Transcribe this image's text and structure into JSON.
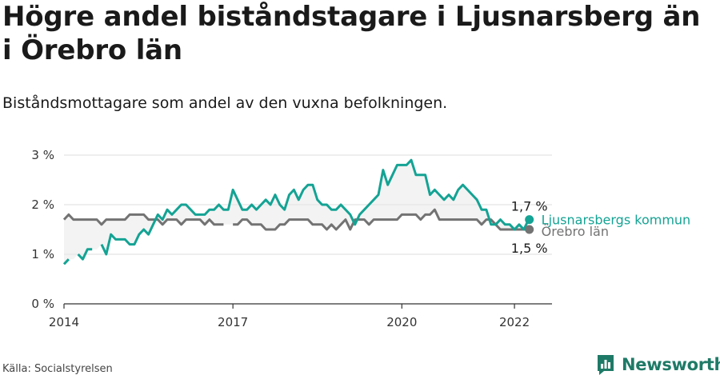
{
  "header": {
    "title": "Högre andel biståndstagare i Ljusnarsberg än i Örebro län",
    "subtitle": "Biståndsmottagare som andel av den vuxna befolkningen."
  },
  "footer": {
    "source": "Källa: Socialstyrelsen",
    "brand": "Newsworthy"
  },
  "colors": {
    "kommun": "#14a394",
    "lan": "#737373",
    "grid": "#dcdcdc",
    "axis": "#333333",
    "brand": "#1e7a66"
  },
  "chart_data": {
    "type": "line",
    "title": "",
    "xlabel": "",
    "ylabel": "",
    "ylim": [
      0,
      3
    ],
    "y_ticks": [
      {
        "value": 0,
        "label": "0 %"
      },
      {
        "value": 1,
        "label": "1 %"
      },
      {
        "value": 2,
        "label": "2 %"
      },
      {
        "value": 3,
        "label": "3 %"
      }
    ],
    "xlim": [
      "2014-01",
      "2022-09"
    ],
    "x_ticks": [
      {
        "value": "2014-01",
        "label": "2014"
      },
      {
        "value": "2017-01",
        "label": "2017"
      },
      {
        "value": "2020-01",
        "label": "2020"
      },
      {
        "value": "2022-01",
        "label": "2022"
      }
    ],
    "grid": true,
    "area_between_series": true,
    "series": [
      {
        "name": "Ljusnarsbergs kommun",
        "color": "#14a394",
        "end_label": "1,7 %",
        "x": [
          "2014-01",
          "2014-02",
          "2014-03",
          "2014-04",
          "2014-05",
          "2014-06",
          "2014-07",
          "2014-08",
          "2014-09",
          "2014-10",
          "2014-11",
          "2014-12",
          "2015-01",
          "2015-02",
          "2015-03",
          "2015-04",
          "2015-05",
          "2015-06",
          "2015-07",
          "2015-08",
          "2015-09",
          "2015-10",
          "2015-11",
          "2015-12",
          "2016-01",
          "2016-02",
          "2016-03",
          "2016-04",
          "2016-05",
          "2016-06",
          "2016-07",
          "2016-08",
          "2016-09",
          "2016-10",
          "2016-11",
          "2016-12",
          "2017-01",
          "2017-02",
          "2017-03",
          "2017-04",
          "2017-05",
          "2017-06",
          "2017-07",
          "2017-08",
          "2017-09",
          "2017-10",
          "2017-11",
          "2017-12",
          "2018-01",
          "2018-02",
          "2018-03",
          "2018-04",
          "2018-05",
          "2018-06",
          "2018-07",
          "2018-08",
          "2018-09",
          "2018-10",
          "2018-11",
          "2018-12",
          "2019-01",
          "2019-02",
          "2019-03",
          "2019-04",
          "2019-05",
          "2019-06",
          "2019-07",
          "2019-08",
          "2019-09",
          "2019-10",
          "2019-11",
          "2019-12",
          "2020-01",
          "2020-02",
          "2020-03",
          "2020-04",
          "2020-05",
          "2020-06",
          "2020-07",
          "2020-08",
          "2020-09",
          "2020-10",
          "2020-11",
          "2020-12",
          "2021-01",
          "2021-02",
          "2021-03",
          "2021-04",
          "2021-05",
          "2021-06",
          "2021-07",
          "2021-08",
          "2021-09",
          "2021-10",
          "2021-11",
          "2021-12",
          "2022-01",
          "2022-02",
          "2022-03",
          "2022-04"
        ],
        "values": [
          0.8,
          0.9,
          null,
          1.0,
          0.9,
          1.1,
          1.1,
          null,
          1.2,
          1.0,
          1.4,
          1.3,
          1.3,
          1.3,
          1.2,
          1.2,
          1.4,
          1.5,
          1.4,
          1.6,
          1.8,
          1.7,
          1.9,
          1.8,
          1.9,
          2.0,
          2.0,
          1.9,
          1.8,
          1.8,
          1.8,
          1.9,
          1.9,
          2.0,
          1.9,
          1.9,
          2.3,
          2.1,
          1.9,
          1.9,
          2.0,
          1.9,
          2.0,
          2.1,
          2.0,
          2.2,
          2.0,
          1.9,
          2.2,
          2.3,
          2.1,
          2.3,
          2.4,
          2.4,
          2.1,
          2.0,
          2.0,
          1.9,
          1.9,
          2.0,
          1.9,
          1.8,
          1.6,
          1.8,
          1.9,
          2.0,
          2.1,
          2.2,
          2.7,
          2.4,
          2.6,
          2.8,
          2.8,
          2.8,
          2.9,
          2.6,
          2.6,
          2.6,
          2.2,
          2.3,
          2.2,
          2.1,
          2.2,
          2.1,
          2.3,
          2.4,
          2.3,
          2.2,
          2.1,
          1.9,
          1.9,
          1.6,
          1.6,
          1.7,
          1.6,
          1.6,
          1.5,
          1.6,
          1.5,
          1.7
        ]
      },
      {
        "name": "Örebro län",
        "color": "#737373",
        "end_label": "1,5 %",
        "x": [
          "2014-01",
          "2014-02",
          "2014-03",
          "2014-04",
          "2014-05",
          "2014-06",
          "2014-07",
          "2014-08",
          "2014-09",
          "2014-10",
          "2014-11",
          "2014-12",
          "2015-01",
          "2015-02",
          "2015-03",
          "2015-04",
          "2015-05",
          "2015-06",
          "2015-07",
          "2015-08",
          "2015-09",
          "2015-10",
          "2015-11",
          "2015-12",
          "2016-01",
          "2016-02",
          "2016-03",
          "2016-04",
          "2016-05",
          "2016-06",
          "2016-07",
          "2016-08",
          "2016-09",
          "2016-10",
          "2016-11",
          "2016-12",
          "2017-01",
          "2017-02",
          "2017-03",
          "2017-04",
          "2017-05",
          "2017-06",
          "2017-07",
          "2017-08",
          "2017-09",
          "2017-10",
          "2017-11",
          "2017-12",
          "2018-01",
          "2018-02",
          "2018-03",
          "2018-04",
          "2018-05",
          "2018-06",
          "2018-07",
          "2018-08",
          "2018-09",
          "2018-10",
          "2018-11",
          "2018-12",
          "2019-01",
          "2019-02",
          "2019-03",
          "2019-04",
          "2019-05",
          "2019-06",
          "2019-07",
          "2019-08",
          "2019-09",
          "2019-10",
          "2019-11",
          "2019-12",
          "2020-01",
          "2020-02",
          "2020-03",
          "2020-04",
          "2020-05",
          "2020-06",
          "2020-07",
          "2020-08",
          "2020-09",
          "2020-10",
          "2020-11",
          "2020-12",
          "2021-01",
          "2021-02",
          "2021-03",
          "2021-04",
          "2021-05",
          "2021-06",
          "2021-07",
          "2021-08",
          "2021-09",
          "2021-10",
          "2021-11",
          "2021-12",
          "2022-01",
          "2022-02",
          "2022-03",
          "2022-04"
        ],
        "values": [
          1.7,
          1.8,
          1.7,
          1.7,
          1.7,
          1.7,
          1.7,
          1.7,
          1.6,
          1.7,
          1.7,
          1.7,
          1.7,
          1.7,
          1.8,
          1.8,
          1.8,
          1.8,
          1.7,
          1.7,
          1.7,
          1.6,
          1.7,
          1.7,
          1.7,
          1.6,
          1.7,
          1.7,
          1.7,
          1.7,
          1.6,
          1.7,
          1.6,
          1.6,
          1.6,
          null,
          1.6,
          1.6,
          1.7,
          1.7,
          1.6,
          1.6,
          1.6,
          1.5,
          1.5,
          1.5,
          1.6,
          1.6,
          1.7,
          1.7,
          1.7,
          1.7,
          1.7,
          1.6,
          1.6,
          1.6,
          1.5,
          1.6,
          1.5,
          1.6,
          1.7,
          1.5,
          1.7,
          1.7,
          1.7,
          1.6,
          1.7,
          1.7,
          1.7,
          1.7,
          1.7,
          1.7,
          1.8,
          1.8,
          1.8,
          1.8,
          1.7,
          1.8,
          1.8,
          1.9,
          1.7,
          1.7,
          1.7,
          1.7,
          1.7,
          1.7,
          1.7,
          1.7,
          1.7,
          1.6,
          1.7,
          1.7,
          1.6,
          1.5,
          1.5,
          1.5,
          1.5,
          1.5,
          1.5,
          1.5
        ]
      }
    ]
  }
}
